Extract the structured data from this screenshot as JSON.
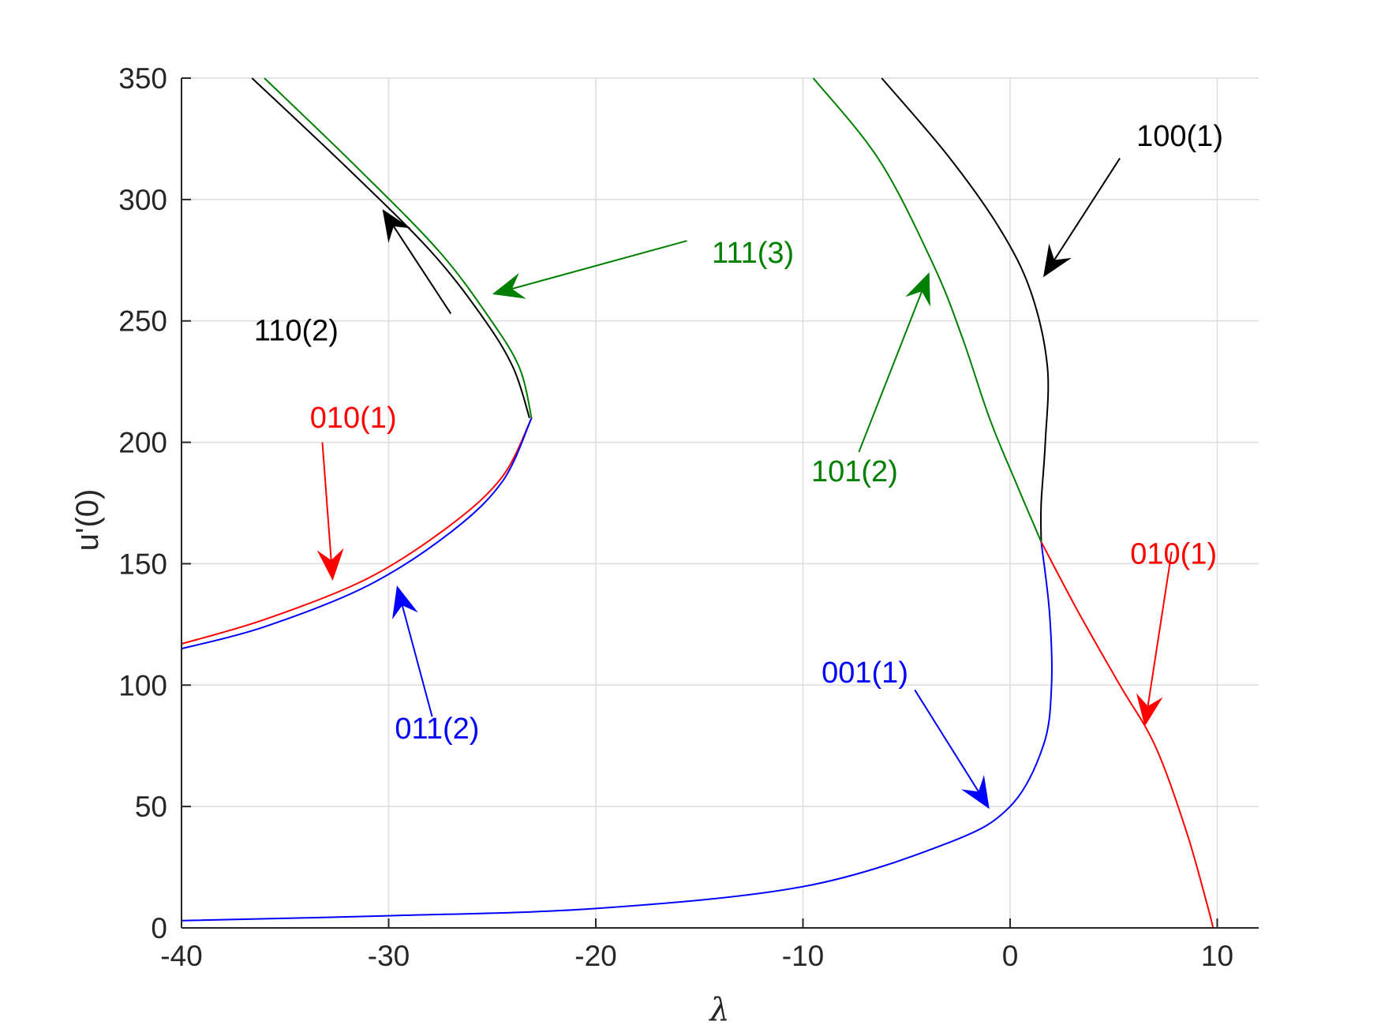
{
  "chart_data": {
    "type": "line",
    "xlabel": "λ",
    "ylabel": "u'(0)",
    "xlim": [
      -40,
      12
    ],
    "ylim": [
      0,
      350
    ],
    "xticks": [
      -40,
      -30,
      -20,
      -10,
      0,
      10
    ],
    "yticks": [
      0,
      50,
      100,
      150,
      200,
      250,
      300,
      350
    ],
    "grid": true,
    "colors": {
      "black": "#000000",
      "green": "#008000",
      "red": "#ff0000",
      "blue": "#0000ff",
      "grid": "#dcdcdc",
      "axis": "#262626"
    },
    "series": [
      {
        "color": "black",
        "points": [
          [
            -36.6,
            350
          ],
          [
            -32,
            313
          ],
          [
            -28,
            279
          ],
          [
            -25.5,
            252
          ],
          [
            -24,
            231
          ],
          [
            -23.2,
            210
          ]
        ]
      },
      {
        "color": "green",
        "points": [
          [
            -36.0,
            350
          ],
          [
            -31.5,
            313
          ],
          [
            -27.6,
            279
          ],
          [
            -25.2,
            252
          ],
          [
            -23.7,
            231
          ],
          [
            -23.1,
            210
          ]
        ]
      },
      {
        "color": "red",
        "points": [
          [
            -40,
            117
          ],
          [
            -36,
            127
          ],
          [
            -31,
            144
          ],
          [
            -27,
            166
          ],
          [
            -24.5,
            186
          ],
          [
            -23.1,
            210
          ]
        ]
      },
      {
        "color": "blue",
        "points": [
          [
            -40,
            115
          ],
          [
            -36,
            124
          ],
          [
            -31,
            141
          ],
          [
            -27,
            163
          ],
          [
            -24.5,
            184
          ],
          [
            -23.1,
            210
          ]
        ]
      },
      {
        "color": "black",
        "points": [
          [
            -6.2,
            350
          ],
          [
            -3,
            318
          ],
          [
            -0.5,
            288
          ],
          [
            1.0,
            262
          ],
          [
            1.8,
            231
          ],
          [
            1.7,
            200
          ],
          [
            1.5,
            175
          ],
          [
            1.5,
            159
          ]
        ]
      },
      {
        "color": "green",
        "points": [
          [
            -9.5,
            350
          ],
          [
            -6.3,
            316
          ],
          [
            -3.7,
            273
          ],
          [
            -2.3,
            243
          ],
          [
            -1.0,
            210
          ],
          [
            0.2,
            185
          ],
          [
            1.5,
            159
          ]
        ]
      },
      {
        "color": "blue",
        "points": [
          [
            1.5,
            159
          ],
          [
            1.9,
            130
          ],
          [
            2.0,
            100
          ],
          [
            1.6,
            75
          ],
          [
            0,
            50
          ],
          [
            -3,
            35
          ],
          [
            -10,
            17
          ],
          [
            -20,
            8
          ],
          [
            -30,
            5
          ],
          [
            -40,
            3
          ]
        ]
      },
      {
        "color": "red",
        "points": [
          [
            1.5,
            159
          ],
          [
            3.3,
            130
          ],
          [
            5.3,
            100
          ],
          [
            7.0,
            75
          ],
          [
            8.5,
            40
          ],
          [
            9.5,
            10
          ],
          [
            9.8,
            0
          ]
        ]
      }
    ],
    "annotations": [
      {
        "label": "110(2)",
        "color": "black",
        "text_at": [
          -36.5,
          242
        ],
        "from": [
          -27,
          253
        ],
        "to": [
          -30.3,
          296
        ]
      },
      {
        "label": "111(3)",
        "color": "green",
        "text_at": [
          -14.4,
          274
        ],
        "from": [
          -15.6,
          283
        ],
        "to": [
          -25,
          261
        ]
      },
      {
        "label": "100(1)",
        "color": "black",
        "text_at": [
          6.1,
          322
        ],
        "from": [
          5.3,
          317
        ],
        "to": [
          1.6,
          268
        ]
      },
      {
        "label": "101(2)",
        "color": "green",
        "text_at": [
          -9.6,
          184
        ],
        "from": [
          -7.3,
          196
        ],
        "to": [
          -3.9,
          270
        ]
      },
      {
        "label": "010(1)",
        "color": "red",
        "text_at": [
          -33.8,
          206
        ],
        "from": [
          -33.2,
          200
        ],
        "to": [
          -32.7,
          143
        ]
      },
      {
        "label": "011(2)",
        "color": "blue",
        "text_at": [
          -29.7,
          78
        ],
        "from": [
          -27.9,
          87
        ],
        "to": [
          -29.6,
          141
        ]
      },
      {
        "label": "001(1)",
        "color": "blue",
        "text_at": [
          -9.1,
          101
        ],
        "from": [
          -4.6,
          98
        ],
        "to": [
          -1.0,
          49
        ]
      },
      {
        "label": "010(1)",
        "color": "red",
        "text_at": [
          5.8,
          150
        ],
        "from": [
          7.8,
          155
        ],
        "to": [
          6.5,
          83
        ]
      }
    ]
  }
}
